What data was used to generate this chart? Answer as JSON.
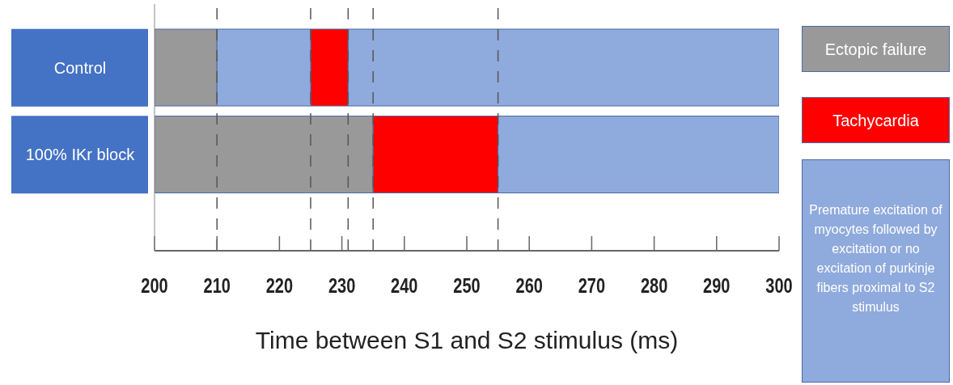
{
  "chart_data": {
    "type": "bar",
    "orientation": "horizontal",
    "categories": [
      "Control",
      "100% IKr block"
    ],
    "series": [
      {
        "name": "Ectopic failure",
        "color": "#999999",
        "base": [
          200,
          200
        ],
        "values": [
          10,
          35
        ]
      },
      {
        "name": "Tachycardia",
        "color": "#ff0000",
        "base": [
          225,
          235
        ],
        "values": [
          6,
          20
        ]
      },
      {
        "name": "Premature excitation of myocytes followed by excitation or no excitation of purkinje fibers proximal to S2 stimulus",
        "color": "#8faadc",
        "base": [
          210,
          255
        ],
        "values": [
          15,
          45
        ]
      },
      {
        "color": "#8faadc",
        "base": [
          231,
          null
        ],
        "values": [
          69,
          null
        ]
      }
    ],
    "xlim": [
      200,
      300
    ],
    "xticks": [
      200,
      210,
      220,
      230,
      240,
      250,
      260,
      270,
      280,
      290,
      300
    ],
    "xlabel": "Time between S1 and S2 stimulus (ms)",
    "ref_lines": [
      {
        "axis": "x",
        "value": 210,
        "line_style": "dashed"
      },
      {
        "axis": "x",
        "value": 225,
        "line_style": "dashed"
      },
      {
        "axis": "x",
        "value": 231,
        "line_style": "dashed"
      },
      {
        "axis": "x",
        "value": 235,
        "line_style": "dashed"
      },
      {
        "axis": "x",
        "value": 255,
        "line_style": "dashed"
      }
    ],
    "legend": "right",
    "grid": false
  }
}
